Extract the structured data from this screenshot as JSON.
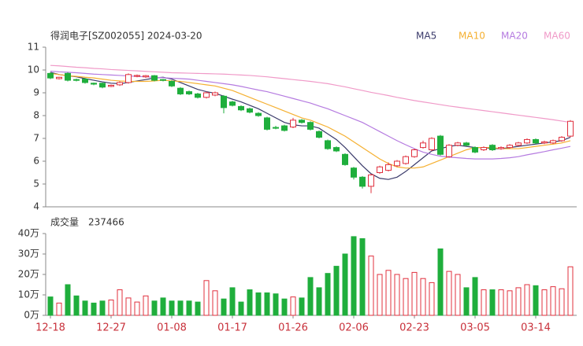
{
  "chart_data": {
    "type": "candlestick",
    "title": "得润电子[SZ002055] 2024-03-20",
    "up_color": "#e0303e",
    "down_color": "#1fae3c",
    "categories": [
      "12-18",
      null,
      null,
      null,
      null,
      null,
      null,
      "12-27",
      null,
      null,
      null,
      null,
      null,
      null,
      "01-08",
      null,
      null,
      null,
      null,
      null,
      null,
      "01-17",
      null,
      null,
      null,
      null,
      null,
      null,
      "01-26",
      null,
      null,
      null,
      null,
      null,
      null,
      "02-06",
      null,
      null,
      null,
      null,
      null,
      null,
      "02-23",
      null,
      null,
      null,
      null,
      null,
      null,
      "03-05",
      null,
      null,
      null,
      null,
      null,
      null,
      "03-14",
      null,
      null,
      null,
      null
    ],
    "candles": {
      "open": [
        9.85,
        9.62,
        9.85,
        9.58,
        9.6,
        9.42,
        9.42,
        9.28,
        9.35,
        9.45,
        9.72,
        9.7,
        9.75,
        9.58,
        9.5,
        9.2,
        9.05,
        8.95,
        8.8,
        8.9,
        8.85,
        8.6,
        8.4,
        8.3,
        8.1,
        7.9,
        7.48,
        7.55,
        7.5,
        7.8,
        7.7,
        7.3,
        6.9,
        6.6,
        6.3,
        5.7,
        5.3,
        4.9,
        5.5,
        5.6,
        5.8,
        5.9,
        6.2,
        6.6,
        6.5,
        7.1,
        6.2,
        6.7,
        6.8,
        6.6,
        6.5,
        6.7,
        6.55,
        6.6,
        6.7,
        6.8,
        6.95,
        6.8,
        6.8,
        6.9,
        7.1
      ],
      "high": [
        9.9,
        9.7,
        9.9,
        9.62,
        9.65,
        9.45,
        9.45,
        9.36,
        9.5,
        9.85,
        9.8,
        9.78,
        9.78,
        9.6,
        9.55,
        9.25,
        9.1,
        9.0,
        9.05,
        9.05,
        8.9,
        8.65,
        8.45,
        8.35,
        8.15,
        7.95,
        7.55,
        7.6,
        7.9,
        7.85,
        7.75,
        7.35,
        6.95,
        6.65,
        6.35,
        5.75,
        5.35,
        5.45,
        5.8,
        5.95,
        6.05,
        6.25,
        6.55,
        6.9,
        7.05,
        7.15,
        6.75,
        6.85,
        6.85,
        6.65,
        6.65,
        6.75,
        6.65,
        6.75,
        6.85,
        7.0,
        7.0,
        6.9,
        6.95,
        7.1,
        7.8
      ],
      "low": [
        9.6,
        9.58,
        9.5,
        9.5,
        9.4,
        9.33,
        9.2,
        9.25,
        9.3,
        9.4,
        9.68,
        9.65,
        9.5,
        9.5,
        9.25,
        8.9,
        8.9,
        8.75,
        8.75,
        8.85,
        8.1,
        8.4,
        8.2,
        8.1,
        7.95,
        7.35,
        7.4,
        7.3,
        7.45,
        7.65,
        7.35,
        7.0,
        6.5,
        6.4,
        5.8,
        5.2,
        4.8,
        4.6,
        5.45,
        5.55,
        5.75,
        5.85,
        6.15,
        6.55,
        6.45,
        6.25,
        6.15,
        6.65,
        6.65,
        6.35,
        6.45,
        6.45,
        6.5,
        6.55,
        6.65,
        6.75,
        6.75,
        6.75,
        6.75,
        6.85,
        7.05
      ],
      "close": [
        9.65,
        9.68,
        9.55,
        9.55,
        9.45,
        9.38,
        9.25,
        9.33,
        9.45,
        9.8,
        9.76,
        9.75,
        9.55,
        9.55,
        9.3,
        8.95,
        8.95,
        8.8,
        9.0,
        9.0,
        8.35,
        8.45,
        8.25,
        8.15,
        8.0,
        7.4,
        7.45,
        7.35,
        7.8,
        7.7,
        7.4,
        7.05,
        6.55,
        6.45,
        5.85,
        5.3,
        4.9,
        5.4,
        5.75,
        5.85,
        6.0,
        6.2,
        6.5,
        6.8,
        7.0,
        6.3,
        6.7,
        6.8,
        6.7,
        6.4,
        6.6,
        6.5,
        6.6,
        6.7,
        6.8,
        6.95,
        6.8,
        6.85,
        6.9,
        7.05,
        7.75
      ]
    },
    "series": [
      {
        "name": "MA5",
        "color": "#3a3a6a",
        "values": [
          9.9,
          9.8,
          9.75,
          9.7,
          9.62,
          9.55,
          9.48,
          9.42,
          9.4,
          9.45,
          9.52,
          9.58,
          9.65,
          9.68,
          9.6,
          9.45,
          9.3,
          9.15,
          9.05,
          8.98,
          8.85,
          8.72,
          8.6,
          8.45,
          8.3,
          8.1,
          7.9,
          7.7,
          7.6,
          7.55,
          7.55,
          7.45,
          7.2,
          6.95,
          6.6,
          6.2,
          5.8,
          5.45,
          5.25,
          5.2,
          5.3,
          5.55,
          5.85,
          6.15,
          6.45,
          6.55,
          6.65,
          6.7,
          6.65,
          6.6,
          6.6,
          6.55,
          6.55,
          6.6,
          6.65,
          6.7,
          6.75,
          6.8,
          6.85,
          6.9,
          7.05
        ]
      },
      {
        "name": "MA10",
        "color": "#f5b031",
        "values": [
          9.85,
          9.8,
          9.75,
          9.72,
          9.68,
          9.65,
          9.6,
          9.55,
          9.52,
          9.5,
          9.5,
          9.5,
          9.52,
          9.55,
          9.52,
          9.5,
          9.45,
          9.4,
          9.35,
          9.3,
          9.2,
          9.1,
          8.95,
          8.8,
          8.65,
          8.5,
          8.35,
          8.2,
          8.05,
          7.9,
          7.8,
          7.65,
          7.5,
          7.3,
          7.1,
          6.85,
          6.6,
          6.35,
          6.1,
          5.9,
          5.75,
          5.7,
          5.7,
          5.75,
          5.9,
          6.05,
          6.2,
          6.35,
          6.5,
          6.6,
          6.6,
          6.6,
          6.55,
          6.55,
          6.55,
          6.6,
          6.65,
          6.7,
          6.75,
          6.8,
          6.9
        ]
      },
      {
        "name": "MA20",
        "color": "#b57be0",
        "values": [
          9.95,
          9.92,
          9.9,
          9.88,
          9.85,
          9.82,
          9.8,
          9.78,
          9.76,
          9.74,
          9.72,
          9.7,
          9.68,
          9.66,
          9.64,
          9.62,
          9.6,
          9.55,
          9.5,
          9.45,
          9.4,
          9.35,
          9.28,
          9.2,
          9.12,
          9.05,
          8.95,
          8.85,
          8.75,
          8.65,
          8.55,
          8.42,
          8.3,
          8.15,
          8.0,
          7.85,
          7.7,
          7.5,
          7.3,
          7.1,
          6.9,
          6.72,
          6.55,
          6.4,
          6.3,
          6.22,
          6.18,
          6.15,
          6.12,
          6.1,
          6.1,
          6.1,
          6.12,
          6.15,
          6.2,
          6.28,
          6.35,
          6.42,
          6.5,
          6.57,
          6.65
        ]
      },
      {
        "name": "MA60",
        "color": "#f09ac8",
        "values": [
          10.2,
          10.18,
          10.15,
          10.12,
          10.1,
          10.07,
          10.05,
          10.02,
          10.0,
          9.98,
          9.96,
          9.94,
          9.92,
          9.9,
          9.88,
          9.87,
          9.86,
          9.85,
          9.84,
          9.83,
          9.82,
          9.8,
          9.78,
          9.76,
          9.73,
          9.7,
          9.66,
          9.62,
          9.58,
          9.54,
          9.5,
          9.45,
          9.4,
          9.33,
          9.26,
          9.18,
          9.1,
          9.02,
          8.95,
          8.88,
          8.8,
          8.73,
          8.66,
          8.6,
          8.54,
          8.48,
          8.42,
          8.37,
          8.32,
          8.27,
          8.22,
          8.17,
          8.12,
          8.07,
          8.02,
          7.97,
          7.92,
          7.87,
          7.82,
          7.76,
          7.7
        ]
      }
    ],
    "ylim": [
      4,
      11
    ],
    "yticks": [
      4,
      5,
      6,
      7,
      8,
      9,
      10,
      11
    ],
    "volume": {
      "label": "成交量",
      "current": {
        "value": 23.7466,
        "label": "237466"
      },
      "values": [
        9,
        6,
        15,
        9.5,
        7,
        6,
        7,
        7.5,
        12.5,
        8.5,
        6.5,
        9.5,
        7,
        8.5,
        7,
        7,
        7,
        6.5,
        17,
        12,
        8,
        13.5,
        6.5,
        12.5,
        11,
        11,
        10.5,
        8,
        9,
        8.5,
        18.5,
        13.5,
        20.5,
        24,
        30,
        38.5,
        37.5,
        29,
        20,
        22,
        20,
        18,
        21,
        18,
        16,
        32.5,
        21.5,
        20,
        13.5,
        18.5,
        12.5,
        12.5,
        12.5,
        12,
        13.5,
        15,
        14.5,
        12.5,
        14,
        13,
        23.7466
      ],
      "ylim": [
        0,
        40
      ],
      "yticks": [
        {
          "value": 0,
          "label": "0万"
        },
        {
          "value": 10,
          "label": "10万"
        },
        {
          "value": 20,
          "label": "20万"
        },
        {
          "value": 30,
          "label": "30万"
        },
        {
          "value": 40,
          "label": "40万"
        }
      ]
    }
  }
}
